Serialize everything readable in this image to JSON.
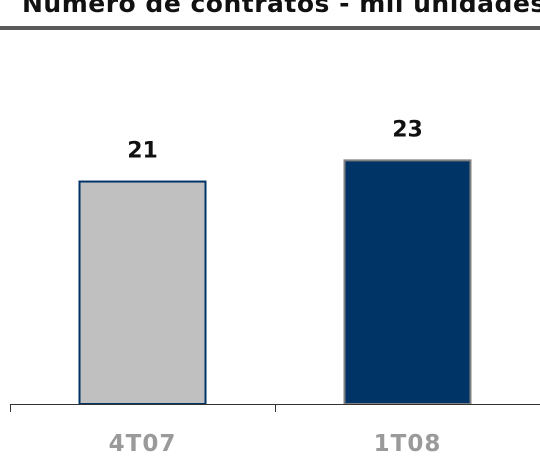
{
  "chart_data": {
    "type": "bar",
    "title": "Número de contratos - mil unidades",
    "categories": [
      "4T07",
      "1T08"
    ],
    "values": [
      21,
      23
    ],
    "data_labels": [
      "21",
      "23"
    ],
    "colors": [
      "#c0c0c0",
      "#003366"
    ],
    "border_colors": [
      "#003366",
      "#808080"
    ],
    "title_rule_color": "#5a5a5a",
    "xlabel": "",
    "ylabel": "",
    "ylim": [
      0,
      27
    ],
    "grid": false,
    "legend": "none"
  }
}
